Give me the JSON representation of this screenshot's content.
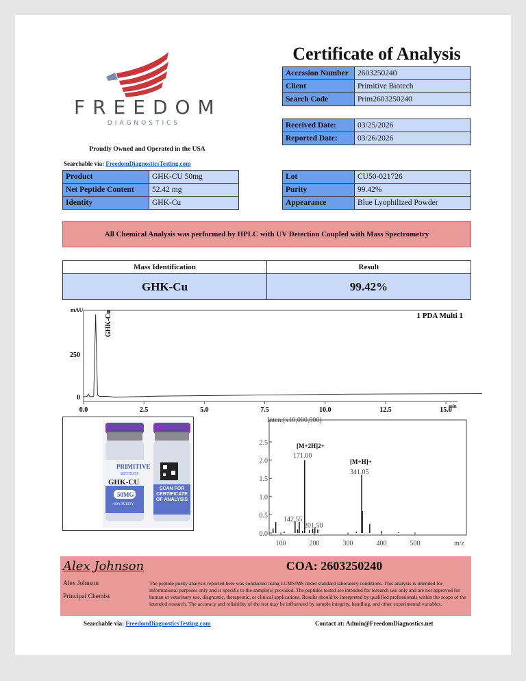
{
  "logo": {
    "name": "FREEDOM",
    "sub": "DIAGNOSTICS",
    "icon": "eagle-flag-icon"
  },
  "tagline": "Proudly Owned and Operated in the USA",
  "searchable": {
    "label": "Searchable via:",
    "link": "FreedomDiagnosticsTesting.com"
  },
  "title": "Certificate of Analysis",
  "info": [
    {
      "label": "Accession Number",
      "value": "2603250240"
    },
    {
      "label": "Client",
      "value": "Primitive Biotech"
    },
    {
      "label": "Search Code",
      "value": "Prim2603250240"
    }
  ],
  "dates": [
    {
      "label": "Received Date:",
      "value": "03/25/2026"
    },
    {
      "label": "Reported Date:",
      "value": "03/26/2026"
    }
  ],
  "product": [
    {
      "label": "Product",
      "value": "GHK-CU 50mg"
    },
    {
      "label": "Net Peptide Content",
      "value": "52.42 mg"
    },
    {
      "label": "Identity",
      "value": "GHK-Cu"
    }
  ],
  "lot": [
    {
      "label": "Lot",
      "value": "CU50-021726"
    },
    {
      "label": "Purity",
      "value": "99.42%"
    },
    {
      "label": "Appearance",
      "value": "Blue Lyophilized Powder"
    }
  ],
  "banner": "All Chemical Analysis was performed by HPLC with UV Detection Coupled with Mass Spectrometry",
  "mass_table": {
    "headers": [
      "Mass Identification",
      "Result"
    ],
    "row": [
      "GHK-Cu",
      "99.42%"
    ]
  },
  "vial": {
    "brand": "PRIMITIVE",
    "brand_sub": "BIOTECH",
    "product": "GHK-CU",
    "dose": "50MG",
    "purity": ">99% PURITY",
    "scan": "SCAN FOR CERTIFICATE OF ANALYSIS"
  },
  "chart_data": [
    {
      "type": "line",
      "title": "1 PDA Multi 1",
      "ylabel": "mAU",
      "xlabel": "min",
      "xlim": [
        0,
        16.5
      ],
      "ylim": [
        0,
        500
      ],
      "xticks": [
        "0.0",
        "2.5",
        "5.0",
        "7.5",
        "10.0",
        "12.5",
        "15.0"
      ],
      "yticks": [
        "0",
        "250"
      ],
      "annotations": [
        {
          "text": "GHK-Cu",
          "x": 0.5
        }
      ],
      "x": [
        0,
        0.15,
        0.2,
        0.25,
        0.3,
        0.42,
        0.5,
        0.58,
        0.65,
        1.0,
        1.3,
        3,
        5,
        7.5,
        10,
        12.5,
        16.5
      ],
      "y": [
        0,
        2,
        15,
        2,
        0,
        3,
        484,
        10,
        2,
        2,
        -3,
        3,
        6,
        10,
        14,
        16,
        18
      ]
    },
    {
      "type": "bar",
      "ylabel": "Inten.(x10,000,000)",
      "xlabel": "m/z",
      "xlim": [
        72,
        590
      ],
      "ylim": [
        0,
        2.9
      ],
      "xticks": [
        "100",
        "200",
        "300",
        "400",
        "500"
      ],
      "yticks": [
        "0.0",
        "0.5",
        "1.0",
        "1.5",
        "2.0",
        "2.5"
      ],
      "x": [
        77,
        85,
        110,
        142.55,
        150,
        155,
        165,
        171.0,
        185,
        195,
        201.5,
        210,
        325,
        341.05,
        343,
        365,
        400,
        450
      ],
      "values": [
        0.12,
        0.3,
        0.04,
        0.32,
        0.1,
        0.3,
        0.06,
        2.0,
        0.08,
        0.12,
        0.15,
        0.1,
        0.04,
        1.6,
        0.6,
        0.25,
        0.05,
        0.02
      ],
      "annotations": [
        {
          "text": "[M+2H]2+",
          "value": "171.00"
        },
        {
          "text": "[M+H]+",
          "value": "341.05"
        },
        {
          "text": "142.55"
        },
        {
          "text": "201.50"
        }
      ]
    }
  ],
  "signature": "Alex Johnson",
  "chemist": {
    "name": "Alex Johnson",
    "role": "Principal Chemist"
  },
  "coa": "COA: 2603250240",
  "disclaimer": "The peptide purity analysis reported here was conducted using LCMS/MS under standard laboratory conditions. This analysis is intended for informational purposes only and is specific to the sample(s) provided. The peptides tested are intended for research use only and are not approved for human or veterinary use, diagnostic, therapeutic, or clinical applications. Results should be interpreted by qualified professionals within the scope of the intended research. The accuracy and reliability of the test may be influenced by sample integrity, handling, and other experimental variables.",
  "bottom": {
    "searchable_label": "Searchable via:",
    "searchable_link": "FreedomDiagnosticsTesting.com",
    "contact": "Contact at: Admin@FreedomDiagnostics.net"
  }
}
